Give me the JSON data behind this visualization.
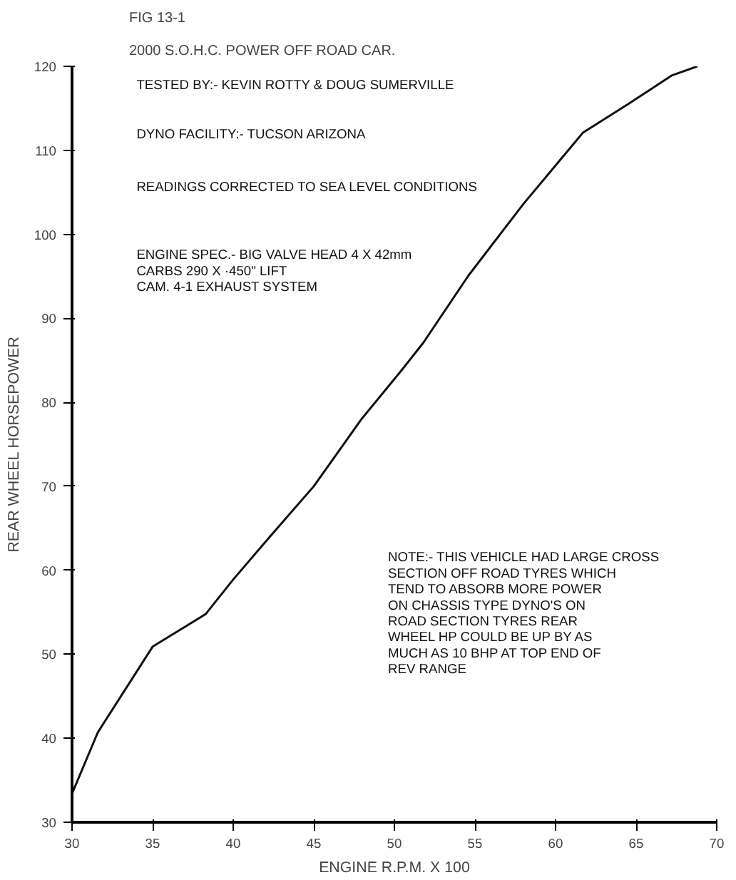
{
  "chart_data": {
    "type": "line",
    "title": "FIG 13-1",
    "subtitle": "2000 S.O.H.C. POWER OFF ROAD CAR.",
    "xlabel": "ENGINE R.P.M. X 100",
    "ylabel": "REAR WHEEL HORSEPOWER",
    "annotations": [
      "TESTED BY:- KEVIN ROTTY & DOUG SUMERVILLE",
      "DYNO FACILITY:- TUCSON ARIZONA",
      "READINGS CORRECTED TO SEA LEVEL CONDITIONS",
      "ENGINE SPEC.- BIG VALVE HEAD 4 X 42mm\nCARBS 290  X ·450\" LIFT\nCAM. 4-1 EXHAUST SYSTEM",
      "NOTE:- THIS VEHICLE HAD LARGE CROSS\nSECTION OFF ROAD TYRES WHICH\nTEND TO ABSORB MORE POWER\nON CHASSIS TYPE DYNO'S ON\nROAD SECTION TYRES REAR\nWHEEL HP COULD BE UP BY AS\nMUCH AS 10 BHP AT TOP END OF\nREV RANGE"
    ],
    "x": [
      30,
      31.6,
      35,
      38.3,
      40,
      42.5,
      45,
      48,
      50.4,
      51.8,
      54.6,
      58,
      61.7,
      64.5,
      67.2,
      68.8
    ],
    "values": [
      33.4,
      40.7,
      50.9,
      54.8,
      58.9,
      64.5,
      70,
      78.1,
      83.7,
      87.1,
      95.1,
      103.6,
      112.1,
      115.5,
      118.9,
      120
    ],
    "color": "#111111",
    "xlim": [
      30,
      70
    ],
    "ylim": [
      30,
      120
    ],
    "xticks": [
      30,
      35,
      40,
      45,
      50,
      55,
      60,
      65,
      70
    ],
    "yticks": [
      30,
      40,
      50,
      60,
      70,
      80,
      90,
      100,
      110,
      120
    ],
    "grid": false,
    "marker": "none",
    "line_style": "solid"
  }
}
